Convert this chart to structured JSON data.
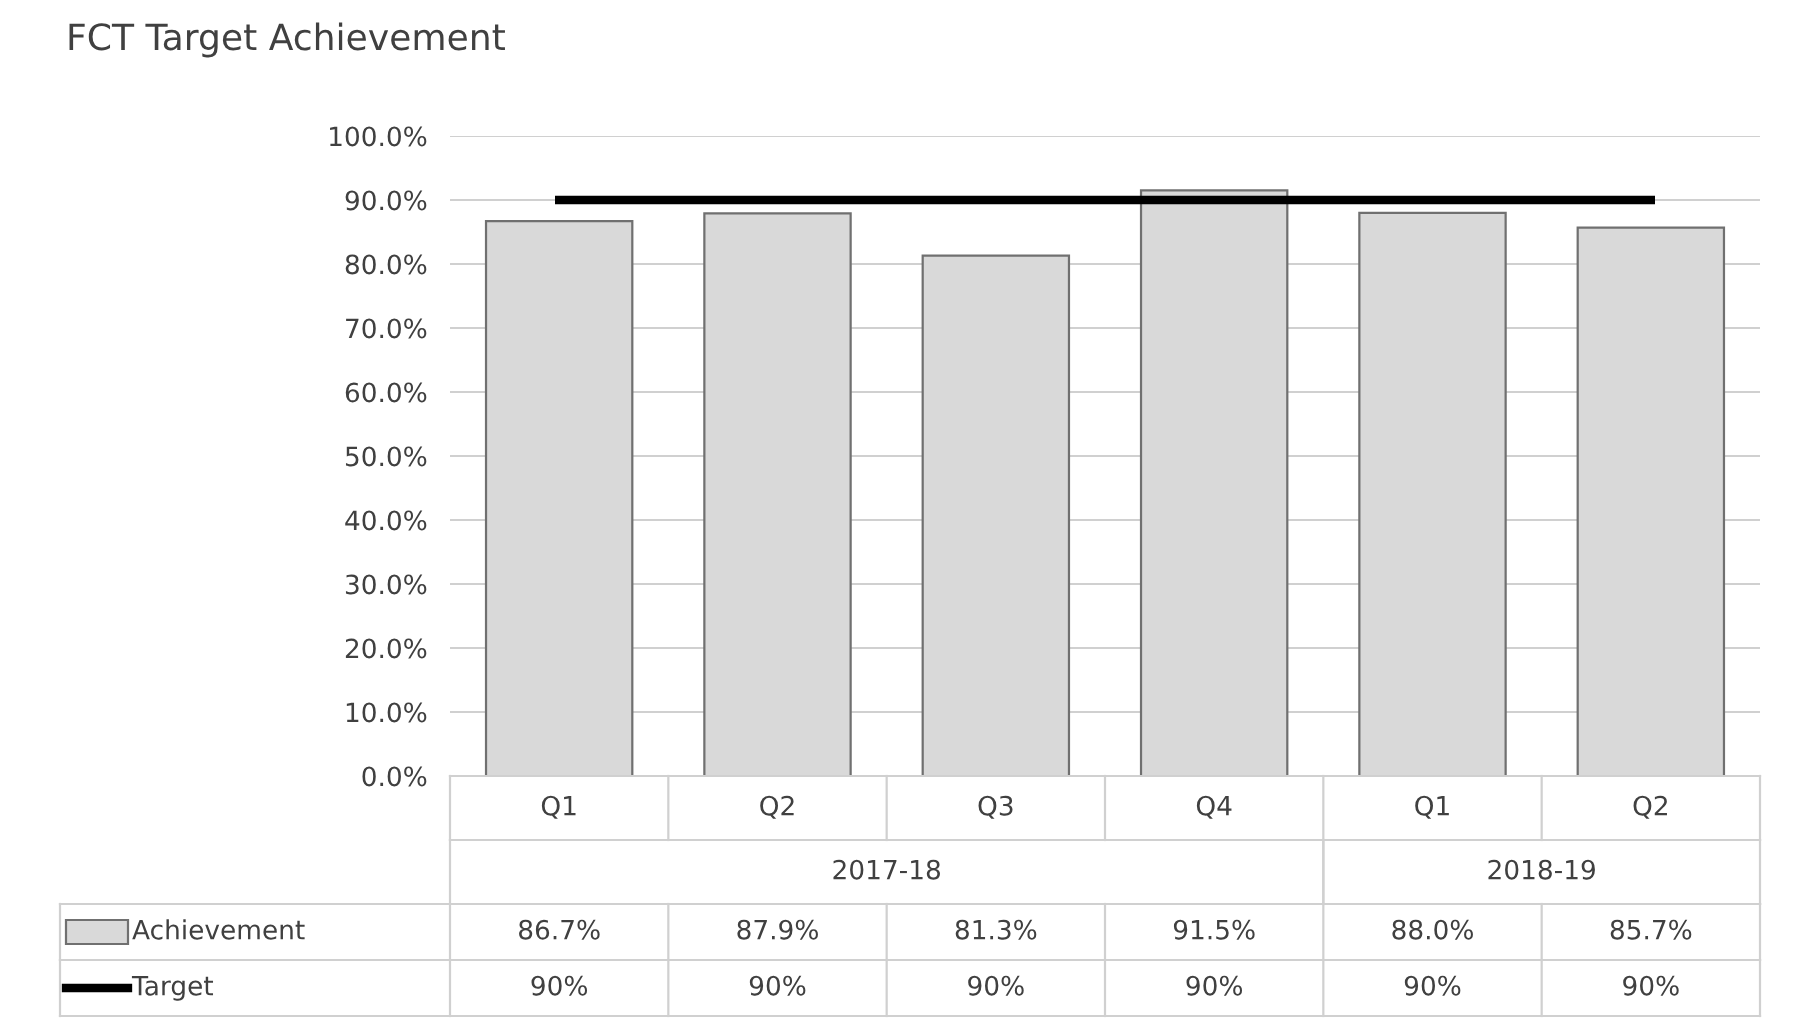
{
  "chart_data": {
    "type": "bar",
    "title": "FCT Target Achievement",
    "categories": [
      "Q1",
      "Q2",
      "Q3",
      "Q4",
      "Q1",
      "Q2"
    ],
    "annotations": [
      "2017-18",
      "2018-19"
    ],
    "series": [
      {
        "name": "Achievement",
        "color": "#d9d9d9",
        "values": [
          86.7,
          87.9,
          81.3,
          91.5,
          88.0,
          85.7
        ],
        "value_labels": [
          "86.7%",
          "87.9%",
          "81.3%",
          "91.5%",
          "88.0%",
          "85.7%"
        ]
      },
      {
        "name": "Target",
        "type": "line",
        "color": "#000000",
        "values": [
          90,
          90,
          90,
          90,
          90,
          90
        ],
        "value_labels": [
          "90%",
          "90%",
          "90%",
          "90%",
          "90%",
          "90%"
        ]
      }
    ],
    "ylim": [
      0,
      100
    ],
    "yticks": [
      {
        "value": 0,
        "label": "0.0%"
      },
      {
        "value": 10,
        "label": "10.0%"
      },
      {
        "value": 20,
        "label": "20.0%"
      },
      {
        "value": 30,
        "label": "30.0%"
      },
      {
        "value": 40,
        "label": "40.0%"
      },
      {
        "value": 50,
        "label": "50.0%"
      },
      {
        "value": 60,
        "label": "60.0%"
      },
      {
        "value": 70,
        "label": "70.0%"
      },
      {
        "value": 80,
        "label": "80.0%"
      },
      {
        "value": 90,
        "label": "90.0%"
      },
      {
        "value": 100,
        "label": "100.0%"
      }
    ],
    "grid": "y",
    "legend": "bottom"
  }
}
